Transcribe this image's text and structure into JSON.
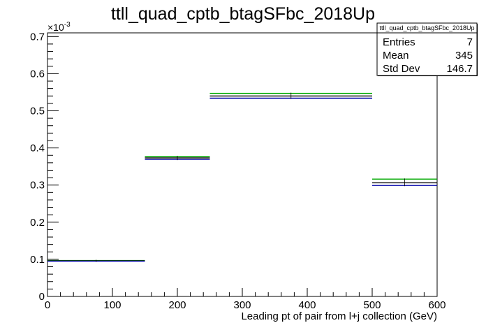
{
  "chart_data": {
    "type": "bar",
    "title": "ttll_quad_cptb_btagSFbc_2018Up",
    "xlabel": "Leading pt of pair from l+j collection (GeV)",
    "ylabel": "",
    "y_exponent_label": "×10",
    "y_exponent_power": "-3",
    "xlim": [
      0,
      600
    ],
    "ylim": [
      0,
      0.71
    ],
    "x_ticks": [
      0,
      100,
      200,
      300,
      400,
      500,
      600
    ],
    "x_tick_labels": [
      "0",
      "100",
      "200",
      "300",
      "400",
      "500",
      "600"
    ],
    "y_ticks": [
      0,
      0.1,
      0.2,
      0.3,
      0.4,
      0.5,
      0.6,
      0.7
    ],
    "y_tick_labels": [
      "0",
      "0.1",
      "0.2",
      "0.3",
      "0.4",
      "0.5",
      "0.6",
      "0.7"
    ],
    "bins": [
      {
        "xlow": 0,
        "xhigh": 150
      },
      {
        "xlow": 150,
        "xhigh": 250
      },
      {
        "xlow": 250,
        "xhigh": 500
      },
      {
        "xlow": 500,
        "xhigh": 600
      }
    ],
    "series": [
      {
        "color": "#00aa00",
        "values": [
          0.097,
          0.377,
          0.547,
          0.316
        ]
      },
      {
        "color": "#000000",
        "values": [
          0.096,
          0.373,
          0.54,
          0.306
        ]
      },
      {
        "color": "#0000aa",
        "values": [
          0.095,
          0.369,
          0.534,
          0.299
        ]
      }
    ],
    "stats_box": {
      "title": "ttll_quad_cptb_btagSFbc_2018Up",
      "rows": [
        {
          "label": "Entries",
          "value": "7"
        },
        {
          "label": "Mean",
          "value": "345"
        },
        {
          "label": "Std Dev",
          "value": "146.7"
        }
      ]
    },
    "grid": false,
    "legend": "none"
  }
}
